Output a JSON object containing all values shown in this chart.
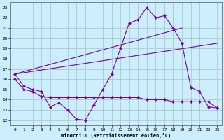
{
  "xlabel": "Windchill (Refroidissement éolien,°C)",
  "bg_color": "#cceeff",
  "grid_color": "#aacccc",
  "line_color": "#7700aa",
  "xlim": [
    -0.5,
    23.5
  ],
  "ylim": [
    11.5,
    23.5
  ],
  "yticks": [
    12,
    13,
    14,
    15,
    16,
    17,
    18,
    19,
    20,
    21,
    22,
    23
  ],
  "xticks": [
    0,
    1,
    2,
    3,
    4,
    5,
    6,
    7,
    8,
    9,
    10,
    11,
    12,
    13,
    14,
    15,
    16,
    17,
    18,
    19,
    20,
    21,
    22,
    23
  ],
  "series1_x": [
    0,
    1,
    2,
    3,
    4,
    5,
    6,
    7,
    8,
    9,
    10,
    11,
    12,
    13,
    14,
    15,
    16,
    17,
    18,
    19,
    20,
    21,
    22,
    23
  ],
  "series1_y": [
    16.5,
    15.3,
    15.0,
    14.8,
    13.3,
    13.7,
    13.0,
    12.1,
    12.0,
    13.5,
    15.0,
    16.5,
    19.0,
    21.5,
    21.8,
    23.0,
    22.0,
    22.2,
    21.0,
    19.5,
    15.2,
    14.8,
    13.3,
    13.2
  ],
  "series2_x": [
    0,
    1,
    2,
    3,
    4,
    5,
    6,
    7,
    8,
    9,
    10,
    11,
    12,
    13,
    14,
    15,
    16,
    17,
    18,
    19,
    20,
    21,
    22,
    23
  ],
  "series2_y": [
    16.0,
    15.0,
    14.8,
    14.3,
    14.2,
    14.2,
    14.2,
    14.2,
    14.2,
    14.2,
    14.2,
    14.2,
    14.2,
    14.2,
    14.2,
    14.0,
    14.0,
    14.0,
    13.8,
    13.8,
    13.8,
    13.8,
    13.8,
    13.2
  ],
  "series3_x": [
    0,
    19
  ],
  "series3_y": [
    16.5,
    21.0
  ],
  "series4_x": [
    0,
    23
  ],
  "series4_y": [
    16.5,
    19.5
  ]
}
